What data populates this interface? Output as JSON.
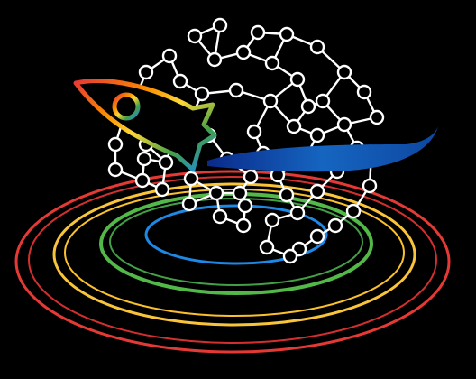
{
  "logo": {
    "elements": [
      "rainbow-rings",
      "circuit-brain",
      "rocket",
      "swoosh"
    ],
    "colors": {
      "background": "#000000",
      "rings": [
        "#e53935",
        "#f9c33a",
        "#52b848",
        "#1e88e5"
      ],
      "brain_nodes": "#ffffff",
      "rocket_gradient": [
        "#e53935",
        "#fb8c00",
        "#fdd835",
        "#43a047",
        "#1e88e5"
      ],
      "swoosh": "#0d47a1"
    }
  }
}
